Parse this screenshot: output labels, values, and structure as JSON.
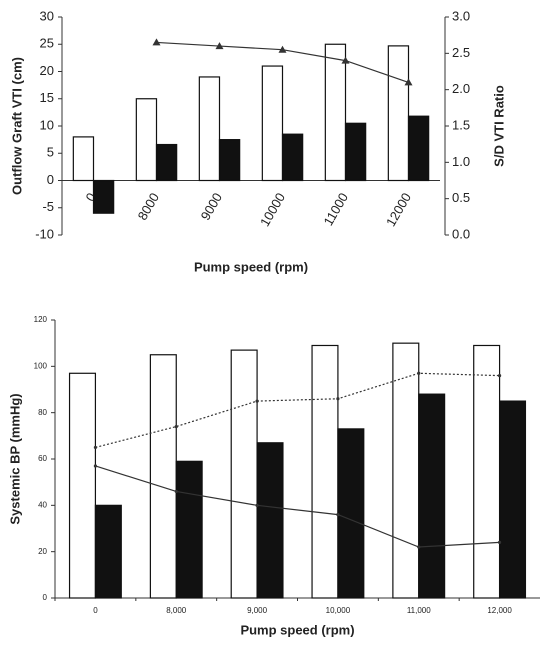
{
  "chart_data": [
    {
      "type": "bar",
      "categories": [
        "0",
        "8000",
        "9000",
        "10000",
        "11000",
        "12000"
      ],
      "series": [
        {
          "color": "#ffffff",
          "mark": "bar",
          "values": [
            8,
            15,
            19,
            21,
            25,
            24.7
          ]
        },
        {
          "color": "#111111",
          "mark": "bar",
          "values": [
            -6,
            6.6,
            7.5,
            8.5,
            10.5,
            11.8
          ]
        },
        {
          "color": "#333333",
          "mark": "line",
          "marker": "triangle",
          "axis": "y2",
          "values": [
            null,
            2.65,
            2.6,
            2.55,
            2.4,
            2.1
          ]
        }
      ],
      "ylabel": "Outflow Graft VTI (cm)",
      "y2label": "S/D VTI Ratio",
      "xlabel": "Pump speed (rpm)",
      "ylim": [
        -10,
        30
      ],
      "yticks": [
        -10,
        -5,
        0,
        5,
        10,
        15,
        20,
        25,
        30
      ],
      "y2lim": [
        0,
        3
      ],
      "y2ticks": [
        {
          "value": 0,
          "label": "0.0"
        },
        0.5,
        {
          "value": 1,
          "label": "1.0"
        },
        1.5,
        {
          "value": 2,
          "label": "2.0"
        },
        2.5,
        {
          "value": 3,
          "label": "3.0"
        }
      ],
      "grid": false
    },
    {
      "type": "bar",
      "categories": [
        "0",
        "8,000",
        "9,000",
        "10,000",
        "11,000",
        "12,000"
      ],
      "series": [
        {
          "color": "#ffffff",
          "mark": "bar",
          "values": [
            97,
            105,
            107,
            109,
            110,
            109
          ]
        },
        {
          "color": "#111111",
          "mark": "bar",
          "values": [
            40,
            59,
            67,
            73,
            88,
            85
          ]
        },
        {
          "color": "#333333",
          "mark": "line",
          "marker": "dot",
          "dashed": true,
          "values": [
            65,
            74,
            85,
            86,
            97,
            96
          ]
        },
        {
          "color": "#333333",
          "mark": "line",
          "marker": "dot",
          "values": [
            57,
            46,
            40,
            36,
            22,
            24
          ]
        }
      ],
      "ylabel": "Systemic BP (mmHg)",
      "xlabel": "Pump speed (rpm)",
      "ylim": [
        0,
        120
      ],
      "yticks": [
        0,
        20,
        40,
        60,
        80,
        100,
        120
      ],
      "grid": false
    }
  ]
}
